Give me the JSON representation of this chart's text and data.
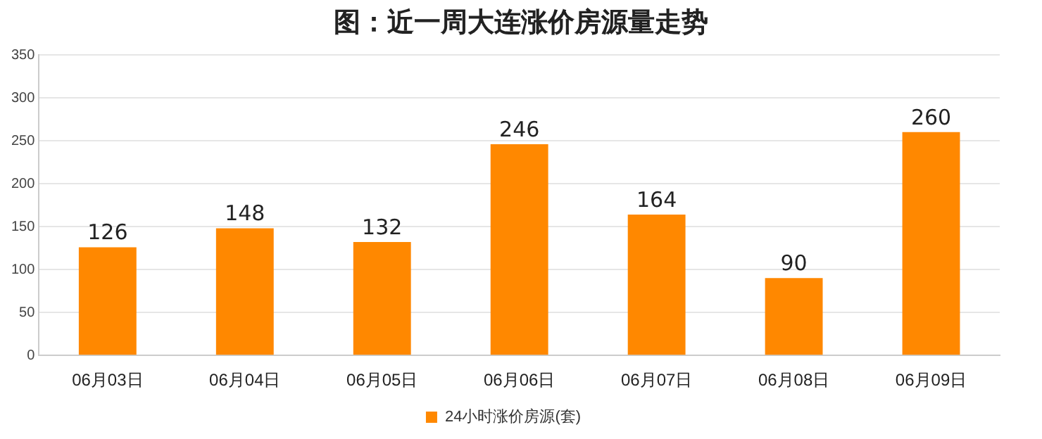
{
  "chart_data": {
    "type": "bar",
    "title": "图：近一周大连涨价房源量走势",
    "categories": [
      "06月03日",
      "06月04日",
      "06月05日",
      "06月06日",
      "06月07日",
      "06月08日",
      "06月09日"
    ],
    "series": [
      {
        "name": "24小时涨价房源(套)",
        "color": "#ff8800",
        "values": [
          126,
          148,
          132,
          246,
          164,
          90,
          260
        ]
      }
    ],
    "ylim": [
      0,
      350
    ],
    "yticks": [
      0,
      50,
      100,
      150,
      200,
      250,
      300,
      350
    ],
    "grid": "y",
    "legend": "bottom",
    "data_labels": true
  }
}
